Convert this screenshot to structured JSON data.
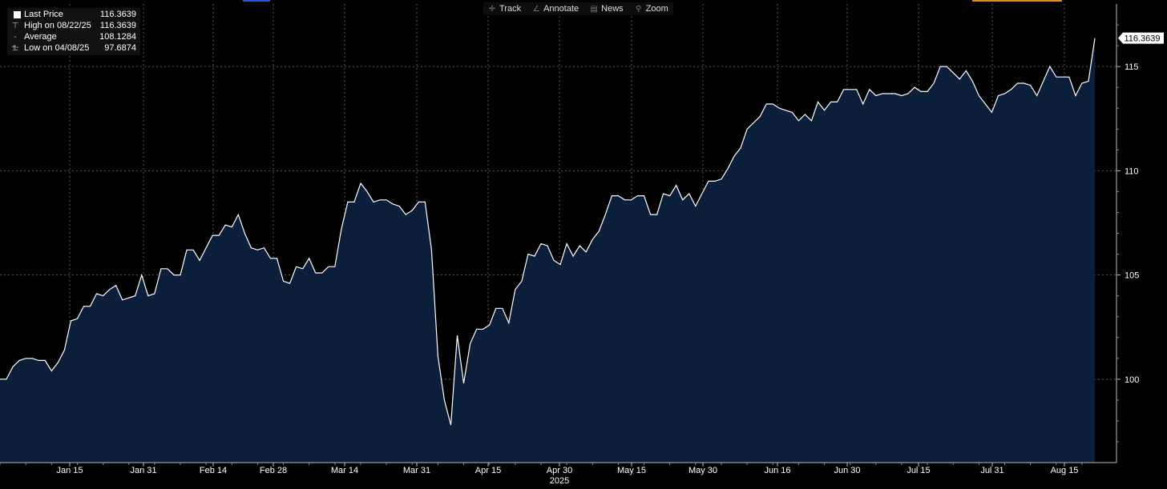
{
  "toolbar": [
    {
      "label": "Track",
      "icon": "crosshair-icon"
    },
    {
      "label": "Annotate",
      "icon": "pencil-icon"
    },
    {
      "label": "News",
      "icon": "newspaper-icon"
    },
    {
      "label": "Zoom",
      "icon": "magnifier-icon"
    }
  ],
  "legend": [
    {
      "label": "Last Price",
      "value": "116.3639"
    },
    {
      "label": "High on 08/22/25",
      "value": "116.3639"
    },
    {
      "label": "Average",
      "value": "108.1284"
    },
    {
      "label": "Low on 04/08/25",
      "value": "97.6874"
    }
  ],
  "colors": {
    "background": "#000000",
    "area_fill": "#0b1f3a",
    "line": "#ffffff",
    "grid": "#5a5a5a",
    "accent_blue": "#1a5fd6",
    "accent_orange": "#e08a1e"
  },
  "chart_data": {
    "type": "area",
    "title": "",
    "xlabel": "2025",
    "ylabel": "",
    "ylim": [
      96.0,
      118.0
    ],
    "y_ticks": [
      100,
      105,
      110,
      115
    ],
    "x_ticks": [
      "Jan 15",
      "Jan 31",
      "Feb 14",
      "Feb 28",
      "Mar 14",
      "Mar 31",
      "Apr 15",
      "Apr 30",
      "May 15",
      "May 30",
      "Jun 16",
      "Jun 30",
      "Jul 15",
      "Jul 31",
      "Aug 15"
    ],
    "last_value_label": "116.3639",
    "grid": true,
    "series": [
      {
        "values": [
          100.0,
          100.0,
          100.6,
          100.9,
          101.0,
          101.0,
          100.9,
          100.9,
          100.4,
          100.8,
          101.4,
          102.8,
          102.9,
          103.5,
          103.5,
          104.1,
          104.0,
          104.3,
          104.5,
          103.8,
          103.9,
          104.0,
          105.0,
          104.0,
          104.1,
          105.3,
          105.3,
          105.0,
          105.0,
          106.2,
          106.2,
          105.7,
          106.3,
          106.9,
          106.9,
          107.4,
          107.3,
          107.9,
          107.0,
          106.3,
          106.2,
          106.3,
          105.8,
          105.8,
          104.7,
          104.6,
          105.4,
          105.3,
          105.8,
          105.1,
          105.1,
          105.4,
          105.4,
          107.2,
          108.5,
          108.5,
          109.4,
          109.0,
          108.5,
          108.6,
          108.6,
          108.4,
          108.3,
          107.9,
          108.1,
          108.5,
          108.5,
          106.2,
          101.1,
          99.0,
          97.8,
          102.1,
          99.8,
          101.7,
          102.4,
          102.4,
          102.6,
          103.4,
          103.4,
          102.7,
          104.3,
          104.7,
          106.0,
          105.9,
          106.5,
          106.4,
          105.7,
          105.5,
          106.5,
          105.9,
          106.4,
          106.1,
          106.7,
          107.1,
          107.9,
          108.8,
          108.8,
          108.6,
          108.6,
          108.8,
          108.8,
          107.9,
          107.9,
          108.9,
          108.8,
          109.3,
          108.6,
          108.9,
          108.3,
          108.9,
          109.5,
          109.5,
          109.6,
          110.1,
          110.7,
          111.1,
          112.0,
          112.3,
          112.6,
          113.2,
          113.2,
          113.0,
          112.9,
          112.8,
          112.4,
          112.7,
          112.4,
          113.3,
          112.9,
          113.3,
          113.3,
          113.9,
          113.9,
          113.9,
          113.2,
          113.9,
          113.6,
          113.7,
          113.7,
          113.7,
          113.6,
          113.7,
          114.0,
          113.8,
          113.8,
          114.2,
          115.0,
          115.0,
          114.7,
          114.4,
          114.8,
          114.3,
          113.6,
          113.2,
          112.8,
          113.6,
          113.7,
          113.9,
          114.2,
          114.2,
          114.1,
          113.6,
          114.3,
          115.0,
          114.5,
          114.5,
          114.5,
          113.6,
          114.2,
          114.3,
          116.3639
        ]
      }
    ]
  }
}
